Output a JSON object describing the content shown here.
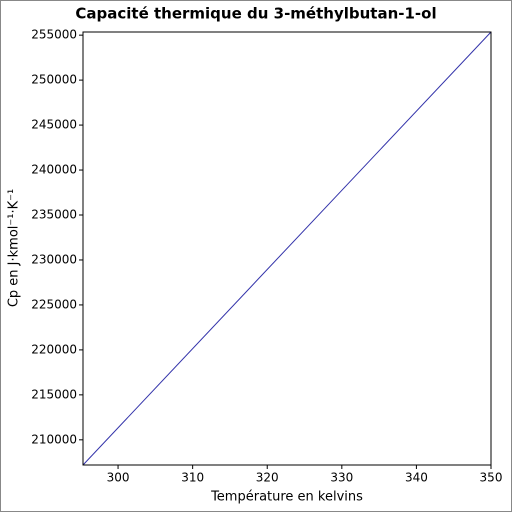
{
  "chart_data": {
    "type": "line",
    "title": "Capacité thermique du 3-méthylbutan-1-ol",
    "x_label": "Température en kelvins",
    "y_label": "Cp en J·kmol⁻¹·K⁻¹",
    "series": [
      {
        "name": "Cp",
        "color": "#3333aa",
        "x": [
          295.3,
          350
        ],
        "values": [
          207200,
          255350
        ]
      }
    ],
    "xlim": [
      295.3,
      350
    ],
    "xticks": [
      300,
      310,
      320,
      330,
      340,
      350
    ],
    "ylim": [
      207200,
      255350
    ],
    "yticks": [
      210000,
      215000,
      220000,
      225000,
      230000,
      235000,
      240000,
      245000,
      250000,
      255000
    ]
  }
}
